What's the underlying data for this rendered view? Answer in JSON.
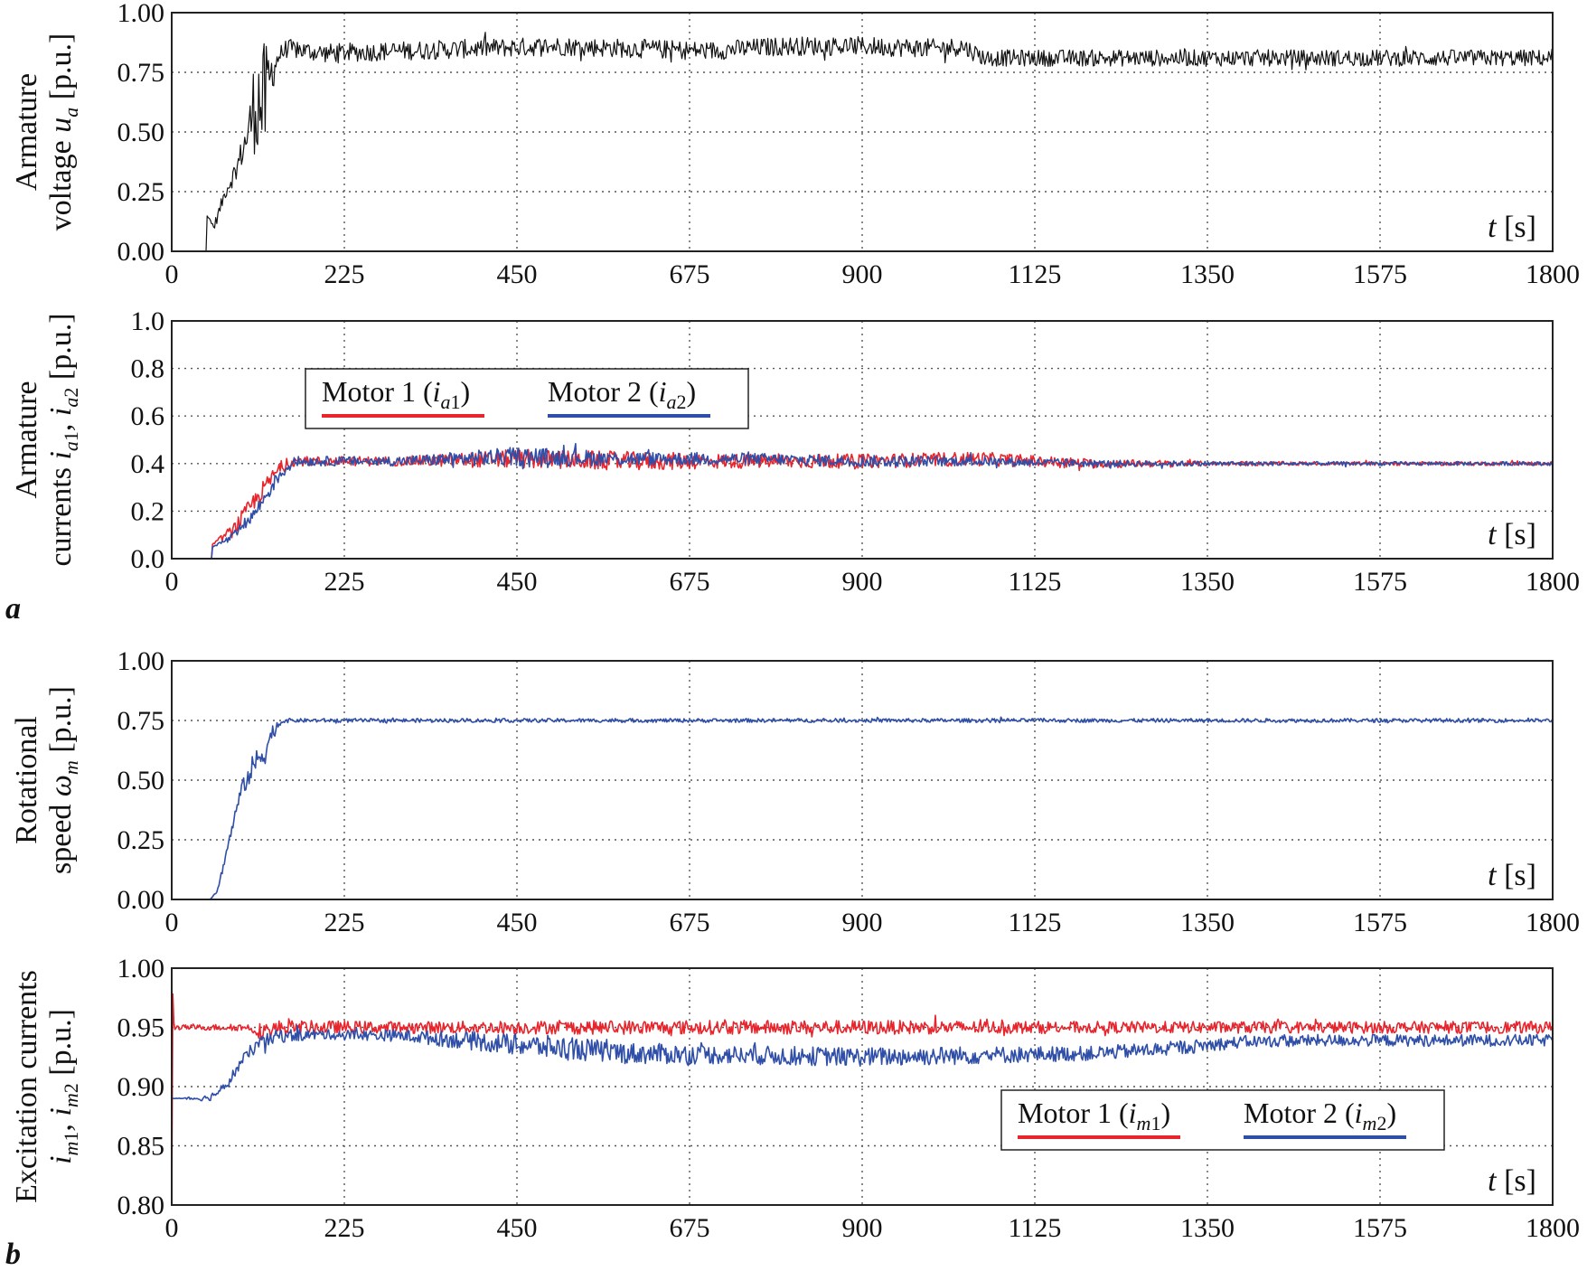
{
  "figure": {
    "panel_labels": [
      "a",
      "b"
    ]
  },
  "colors": {
    "motor1": "#e8242c",
    "motor2": "#2f4ea8",
    "voltage": "#111111"
  },
  "chart_data": [
    {
      "id": "armature-voltage",
      "type": "line",
      "panel": "a",
      "ylabel_lines": [
        "Armature",
        "voltage u_a [p.u.]"
      ],
      "xlabel": "t [s]",
      "xlim": [
        0,
        1800
      ],
      "ylim": [
        0,
        1
      ],
      "xticks": [
        0,
        225,
        450,
        675,
        900,
        1125,
        1350,
        1575,
        1800
      ],
      "yticks": [
        "0.00",
        "0.25",
        "0.50",
        "0.75",
        "1.00"
      ],
      "grid": true,
      "series": [
        {
          "color_key": "voltage",
          "x": [
            0,
            45,
            46,
            55,
            70,
            85,
            100,
            110,
            120,
            130,
            140,
            150,
            200,
            300,
            400,
            500,
            600,
            700,
            800,
            900,
            1000,
            1030,
            1060,
            1100,
            1200,
            1300,
            1400,
            1500,
            1600,
            1700,
            1800
          ],
          "y": [
            0,
            0,
            0.15,
            0.1,
            0.25,
            0.35,
            0.5,
            0.65,
            0.6,
            0.75,
            0.82,
            0.85,
            0.83,
            0.84,
            0.85,
            0.86,
            0.85,
            0.84,
            0.86,
            0.86,
            0.85,
            0.86,
            0.81,
            0.81,
            0.81,
            0.81,
            0.81,
            0.81,
            0.81,
            0.81,
            0.81
          ],
          "noise": [
            0,
            0,
            0,
            0.02,
            0.03,
            0.05,
            0.08,
            0.25,
            0.28,
            0.1,
            0.04,
            0.04,
            0.04,
            0.04,
            0.04,
            0.04,
            0.04,
            0.04,
            0.04,
            0.04,
            0.04,
            0.04,
            0.035,
            0.035,
            0.035,
            0.035,
            0.035,
            0.035,
            0.035,
            0.035,
            0.035
          ]
        }
      ]
    },
    {
      "id": "armature-currents",
      "type": "line",
      "panel": "a",
      "ylabel_lines": [
        "Armature",
        "currents i_a1, i_a2 [p.u.]"
      ],
      "xlabel": "t [s]",
      "xlim": [
        0,
        1800
      ],
      "ylim": [
        0,
        1
      ],
      "xticks": [
        0,
        225,
        450,
        675,
        900,
        1125,
        1350,
        1575,
        1800
      ],
      "yticks": [
        "0.0",
        "0.2",
        "0.4",
        "0.6",
        "0.8",
        "1.0"
      ],
      "grid": true,
      "legend": {
        "placement": "upper-left",
        "entries": [
          "Motor 1 (i_a1)",
          "Motor 2 (i_a2)"
        ]
      },
      "series": [
        {
          "name": "Motor 1 (i_a1)",
          "color_key": "motor1",
          "x": [
            0,
            52,
            53,
            80,
            110,
            140,
            160,
            300,
            450,
            600,
            750,
            900,
            1050,
            1200,
            1350,
            1500,
            1650,
            1800
          ],
          "y": [
            0,
            0,
            0.06,
            0.12,
            0.25,
            0.38,
            0.41,
            0.41,
            0.42,
            0.41,
            0.41,
            0.41,
            0.42,
            0.4,
            0.4,
            0.4,
            0.4,
            0.4
          ],
          "noise": [
            0,
            0,
            0,
            0.03,
            0.04,
            0.03,
            0.02,
            0.02,
            0.04,
            0.04,
            0.03,
            0.03,
            0.03,
            0.02,
            0.01,
            0.008,
            0.008,
            0.008
          ]
        },
        {
          "name": "Motor 2 (i_a2)",
          "color_key": "motor2",
          "x": [
            0,
            52,
            53,
            80,
            110,
            140,
            160,
            300,
            450,
            600,
            750,
            900,
            1050,
            1200,
            1350,
            1500,
            1650,
            1800
          ],
          "y": [
            0,
            0,
            0.05,
            0.09,
            0.2,
            0.35,
            0.41,
            0.41,
            0.43,
            0.42,
            0.42,
            0.41,
            0.41,
            0.4,
            0.4,
            0.4,
            0.4,
            0.4
          ],
          "noise": [
            0,
            0,
            0,
            0.02,
            0.03,
            0.03,
            0.02,
            0.02,
            0.04,
            0.03,
            0.025,
            0.025,
            0.02,
            0.015,
            0.01,
            0.008,
            0.008,
            0.008
          ]
        }
      ]
    },
    {
      "id": "rotational-speed",
      "type": "line",
      "panel": "b",
      "ylabel_lines": [
        "Rotational",
        "speed ω_m [p.u.]"
      ],
      "xlabel": "t [s]",
      "xlim": [
        0,
        1800
      ],
      "ylim": [
        0,
        1
      ],
      "xticks": [
        0,
        225,
        450,
        675,
        900,
        1125,
        1350,
        1575,
        1800
      ],
      "yticks": [
        "0.00",
        "0.25",
        "0.50",
        "0.75",
        "1.00"
      ],
      "grid": true,
      "series": [
        {
          "color_key": "motor2",
          "x": [
            0,
            50,
            60,
            75,
            90,
            105,
            120,
            135,
            145,
            160,
            400,
            800,
            1200,
            1600,
            1800
          ],
          "y": [
            0,
            0,
            0.04,
            0.25,
            0.45,
            0.55,
            0.62,
            0.72,
            0.75,
            0.75,
            0.75,
            0.75,
            0.75,
            0.75,
            0.75
          ],
          "noise": [
            0,
            0,
            0.01,
            0.02,
            0.03,
            0.05,
            0.07,
            0.03,
            0.01,
            0.008,
            0.008,
            0.008,
            0.008,
            0.008,
            0.008
          ]
        }
      ]
    },
    {
      "id": "excitation-currents",
      "type": "line",
      "panel": "b",
      "ylabel_lines": [
        "Excitation currents",
        "i_m1, i_m2 [p.u.]"
      ],
      "xlabel": "t [s]",
      "xlim": [
        0,
        1800
      ],
      "ylim": [
        0.8,
        1
      ],
      "xticks": [
        0,
        225,
        450,
        675,
        900,
        1125,
        1350,
        1575,
        1800
      ],
      "yticks": [
        "0.80",
        "0.85",
        "0.90",
        "0.95",
        "1.00"
      ],
      "grid": true,
      "legend": {
        "placement": "lower-right",
        "entries": [
          "Motor 1 (i_m1)",
          "Motor 2 (i_m2)"
        ]
      },
      "series": [
        {
          "name": "Motor 1 (i_m1)",
          "color_key": "motor1",
          "x": [
            0,
            1,
            3,
            5,
            100,
            120,
            140,
            300,
            600,
            900,
            1200,
            1500,
            1800
          ],
          "y": [
            0.8,
            0.985,
            0.95,
            0.95,
            0.95,
            0.946,
            0.95,
            0.95,
            0.95,
            0.95,
            0.95,
            0.95,
            0.95
          ],
          "noise": [
            0,
            0,
            0.002,
            0.002,
            0.003,
            0.008,
            0.006,
            0.005,
            0.006,
            0.006,
            0.005,
            0.005,
            0.005
          ]
        },
        {
          "name": "Motor 2 (i_m2)",
          "color_key": "motor2",
          "x": [
            0,
            40,
            50,
            70,
            90,
            110,
            140,
            200,
            300,
            400,
            500,
            600,
            700,
            800,
            900,
            1000,
            1100,
            1200,
            1300,
            1400,
            1500,
            1600,
            1700,
            1800
          ],
          "y": [
            0.89,
            0.89,
            0.891,
            0.9,
            0.92,
            0.935,
            0.943,
            0.944,
            0.943,
            0.938,
            0.933,
            0.928,
            0.927,
            0.926,
            0.925,
            0.926,
            0.927,
            0.928,
            0.932,
            0.938,
            0.939,
            0.939,
            0.939,
            0.939
          ],
          "noise": [
            0,
            0.002,
            0.003,
            0.004,
            0.005,
            0.006,
            0.006,
            0.004,
            0.005,
            0.008,
            0.01,
            0.009,
            0.008,
            0.008,
            0.008,
            0.008,
            0.007,
            0.006,
            0.006,
            0.005,
            0.005,
            0.005,
            0.005,
            0.005
          ]
        }
      ]
    }
  ]
}
